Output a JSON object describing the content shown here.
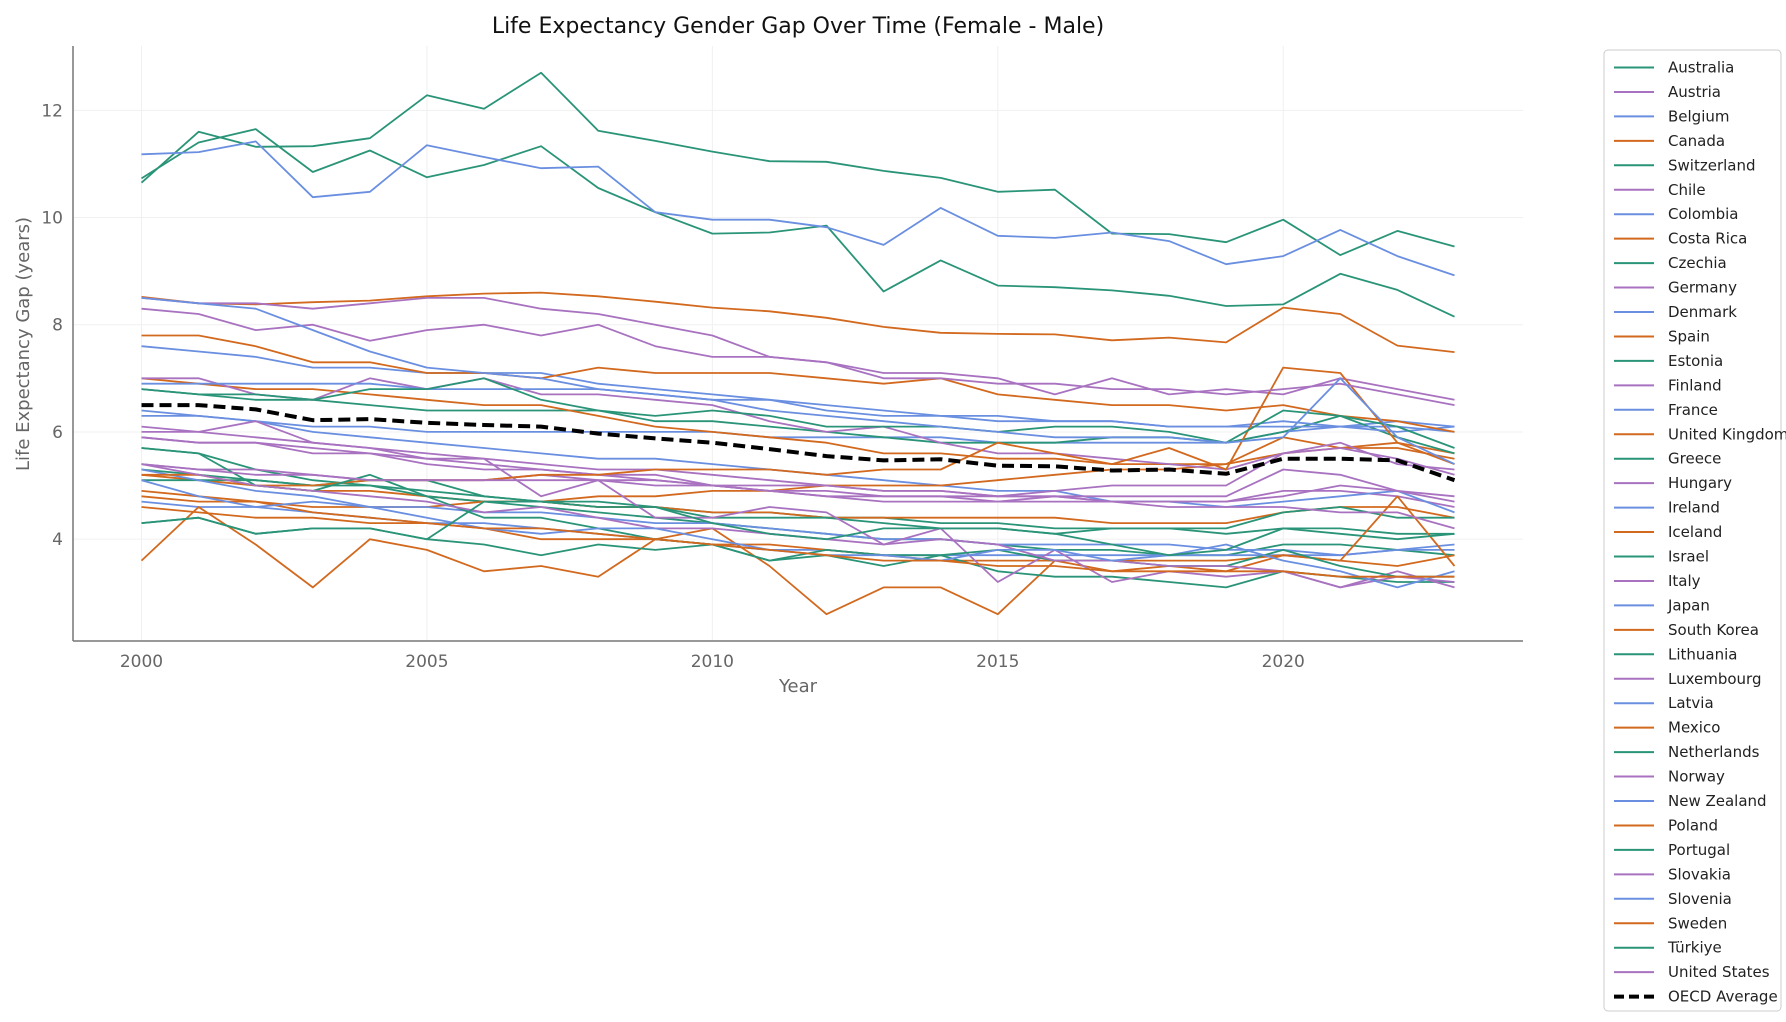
{
  "chart_data": {
    "type": "line",
    "title": "Life Expectancy Gender Gap Over Time (Female - Male)",
    "xlabel": "Year",
    "ylabel": "Life Expectancy Gap (years)",
    "xlim": [
      1998.8,
      2024.2
    ],
    "ylim": [
      2.1,
      13.2
    ],
    "x_ticks": [
      2000,
      2005,
      2010,
      2015,
      2020
    ],
    "y_ticks": [
      4,
      6,
      8,
      10,
      12
    ],
    "grid": true,
    "legend": "right, outside",
    "colors": {
      "teal": "#2a9478",
      "purple": "#a872c0",
      "blue": "#6a8fe0",
      "orange": "#d2691e",
      "average": "#000000"
    },
    "x": [
      2000,
      2001,
      2002,
      2003,
      2004,
      2005,
      2006,
      2007,
      2008,
      2009,
      2010,
      2011,
      2012,
      2013,
      2014,
      2015,
      2016,
      2017,
      2018,
      2019,
      2020,
      2021,
      2022,
      2023
    ],
    "series": [
      {
        "name": "Australia",
        "values": [
          5.3,
          5.2,
          5.1,
          5.0,
          5.0,
          4.9,
          4.8,
          4.7,
          4.6,
          4.6,
          4.5,
          4.5,
          4.4,
          4.4,
          4.3,
          4.3,
          4.2,
          4.2,
          4.2,
          4.1,
          4.2,
          4.2,
          4.1,
          4.1
        ]
      },
      {
        "name": "Austria",
        "values": [
          6.1,
          6.0,
          5.9,
          5.8,
          5.7,
          5.6,
          5.5,
          5.4,
          5.3,
          5.3,
          5.2,
          5.1,
          5.0,
          4.9,
          4.9,
          4.8,
          4.8,
          4.7,
          4.7,
          4.7,
          4.9,
          4.9,
          4.8,
          4.6
        ]
      },
      {
        "name": "Belgium",
        "values": [
          6.4,
          6.3,
          6.2,
          6.0,
          5.9,
          5.8,
          5.7,
          5.6,
          5.5,
          5.5,
          5.4,
          5.3,
          5.2,
          5.1,
          5.0,
          4.9,
          4.9,
          4.7,
          4.7,
          4.6,
          4.7,
          4.8,
          4.9,
          4.5
        ]
      },
      {
        "name": "Canada",
        "values": [
          5.2,
          5.1,
          5.0,
          4.9,
          4.9,
          4.8,
          4.7,
          4.7,
          4.6,
          4.6,
          4.5,
          4.5,
          4.4,
          4.4,
          4.4,
          4.4,
          4.4,
          4.3,
          4.3,
          4.3,
          4.5,
          4.6,
          4.6,
          4.4
        ]
      },
      {
        "name": "Switzerland",
        "values": [
          5.7,
          5.6,
          5.3,
          5.1,
          5.0,
          4.8,
          4.7,
          4.6,
          4.5,
          4.4,
          4.3,
          4.2,
          4.1,
          4.0,
          4.0,
          3.9,
          3.8,
          3.8,
          3.7,
          3.7,
          3.9,
          3.9,
          3.8,
          3.7
        ]
      },
      {
        "name": "Chile",
        "values": [
          5.4,
          5.3,
          5.3,
          5.2,
          5.1,
          5.1,
          5.1,
          5.2,
          5.1,
          5.0,
          5.0,
          4.9,
          4.8,
          4.7,
          4.7,
          4.7,
          4.8,
          4.8,
          4.8,
          4.8,
          5.3,
          5.2,
          4.9,
          4.8
        ]
      },
      {
        "name": "Colombia",
        "values": [
          6.3,
          6.3,
          6.2,
          6.1,
          6.1,
          6.0,
          6.0,
          6.0,
          6.0,
          6.0,
          6.0,
          5.9,
          5.9,
          5.9,
          5.9,
          5.8,
          5.8,
          5.8,
          5.8,
          5.8,
          6.0,
          6.1,
          6.2,
          6.1
        ]
      },
      {
        "name": "Costa Rica",
        "values": [
          4.8,
          4.7,
          4.7,
          4.6,
          4.6,
          4.6,
          4.7,
          4.7,
          4.8,
          4.8,
          4.9,
          4.9,
          5.0,
          5.0,
          5.0,
          5.1,
          5.2,
          5.3,
          5.3,
          5.4,
          5.6,
          5.7,
          5.8,
          5.6
        ]
      },
      {
        "name": "Czechia",
        "values": [
          6.8,
          6.7,
          6.6,
          6.6,
          6.5,
          6.4,
          6.4,
          6.4,
          6.4,
          6.2,
          6.2,
          6.1,
          6.0,
          5.9,
          5.8,
          5.8,
          5.8,
          5.9,
          5.9,
          5.8,
          6.0,
          6.3,
          5.9,
          5.6
        ]
      },
      {
        "name": "Germany",
        "values": [
          5.9,
          5.8,
          5.8,
          5.7,
          5.6,
          5.5,
          5.4,
          5.3,
          5.2,
          5.1,
          5.0,
          4.9,
          4.9,
          4.8,
          4.8,
          4.8,
          4.8,
          4.7,
          4.7,
          4.7,
          4.8,
          5.0,
          4.9,
          4.7
        ]
      },
      {
        "name": "Denmark",
        "values": [
          4.7,
          4.6,
          4.6,
          4.5,
          4.4,
          4.3,
          4.3,
          4.2,
          4.1,
          4.0,
          3.9,
          3.8,
          3.8,
          3.7,
          3.7,
          3.7,
          3.7,
          3.7,
          3.7,
          3.7,
          3.7,
          3.7,
          3.8,
          3.8
        ]
      },
      {
        "name": "Spain",
        "values": [
          7.0,
          6.9,
          6.8,
          6.8,
          6.7,
          6.6,
          6.5,
          6.5,
          6.3,
          6.1,
          6.0,
          5.9,
          5.8,
          5.6,
          5.6,
          5.5,
          5.5,
          5.4,
          5.4,
          5.4,
          5.9,
          5.7,
          5.7,
          5.5
        ]
      },
      {
        "name": "Estonia",
        "values": [
          10.73,
          11.4,
          11.65,
          10.85,
          11.25,
          10.75,
          10.98,
          11.33,
          10.55,
          10.1,
          9.7,
          9.72,
          9.85,
          8.62,
          9.2,
          8.73,
          8.7,
          8.64,
          8.54,
          8.35,
          8.38,
          8.95,
          8.65,
          8.15
        ]
      },
      {
        "name": "Finland",
        "values": [
          7.0,
          7.0,
          6.7,
          6.6,
          7.0,
          6.8,
          7.0,
          6.7,
          6.7,
          6.6,
          6.5,
          6.2,
          6.0,
          6.1,
          5.8,
          5.6,
          5.6,
          5.5,
          5.4,
          5.3,
          5.6,
          5.7,
          5.5,
          5.2
        ]
      },
      {
        "name": "France",
        "values": [
          7.6,
          7.5,
          7.4,
          7.2,
          7.2,
          7.1,
          7.1,
          7.1,
          6.9,
          6.8,
          6.7,
          6.6,
          6.4,
          6.3,
          6.3,
          6.2,
          6.2,
          6.2,
          6.1,
          6.1,
          6.2,
          6.1,
          6.0,
          6.1
        ]
      },
      {
        "name": "United Kingdom",
        "values": [
          4.9,
          4.8,
          4.7,
          4.5,
          4.4,
          4.3,
          4.2,
          4.0,
          4.0,
          4.0,
          3.9,
          3.9,
          3.8,
          3.7,
          3.6,
          3.6,
          3.6,
          3.6,
          3.6,
          3.6,
          3.7,
          3.6,
          3.5,
          3.7
        ]
      },
      {
        "name": "Greece",
        "values": [
          5.1,
          5.1,
          5.1,
          5.0,
          5.1,
          5.1,
          4.8,
          4.7,
          4.7,
          4.6,
          4.4,
          4.4,
          4.4,
          4.3,
          4.2,
          4.2,
          4.1,
          4.2,
          4.2,
          4.2,
          4.5,
          4.6,
          4.4,
          4.4
        ]
      },
      {
        "name": "Hungary",
        "values": [
          8.3,
          8.2,
          7.9,
          8.0,
          7.7,
          7.9,
          8.0,
          7.8,
          8.0,
          7.6,
          7.4,
          7.4,
          7.3,
          7.1,
          7.1,
          7.0,
          6.7,
          7.0,
          6.7,
          6.8,
          6.7,
          7.0,
          6.8,
          6.6
        ]
      },
      {
        "name": "Ireland",
        "values": [
          5.3,
          5.1,
          4.9,
          4.8,
          4.6,
          4.6,
          4.5,
          4.5,
          4.4,
          4.3,
          4.3,
          4.2,
          4.1,
          4.0,
          4.0,
          3.9,
          3.9,
          3.9,
          3.9,
          3.8,
          3.8,
          3.7,
          3.8,
          3.9
        ]
      },
      {
        "name": "Iceland",
        "values": [
          3.6,
          4.6,
          3.9,
          3.1,
          4.0,
          3.8,
          3.4,
          3.5,
          3.3,
          4.0,
          4.2,
          3.5,
          2.6,
          3.1,
          3.1,
          2.6,
          3.6,
          3.4,
          3.5,
          3.4,
          3.7,
          3.6,
          4.8,
          3.5
        ]
      },
      {
        "name": "Israel",
        "values": [
          4.3,
          4.4,
          4.1,
          4.2,
          4.2,
          4.0,
          3.9,
          3.7,
          3.9,
          3.8,
          3.9,
          3.6,
          3.7,
          3.5,
          3.7,
          3.4,
          3.3,
          3.3,
          3.2,
          3.1,
          3.4,
          3.3,
          3.2,
          3.2
        ]
      },
      {
        "name": "Italy",
        "values": [
          5.9,
          5.8,
          5.8,
          5.6,
          5.6,
          5.4,
          5.3,
          5.3,
          5.2,
          5.2,
          5.0,
          4.9,
          4.8,
          4.8,
          4.8,
          4.7,
          4.7,
          4.7,
          4.6,
          4.6,
          4.6,
          4.5,
          4.5,
          4.2
        ]
      },
      {
        "name": "Japan",
        "values": [
          6.9,
          6.9,
          6.9,
          6.9,
          6.9,
          6.8,
          6.8,
          6.8,
          6.8,
          6.7,
          6.6,
          6.6,
          6.5,
          6.4,
          6.3,
          6.3,
          6.2,
          6.2,
          6.1,
          6.1,
          6.1,
          6.1,
          6.1,
          6.0
        ]
      },
      {
        "name": "South Korea",
        "values": [
          7.8,
          7.8,
          7.6,
          7.3,
          7.3,
          7.1,
          7.1,
          7.0,
          7.2,
          7.1,
          7.1,
          7.1,
          7.0,
          6.9,
          7.0,
          6.7,
          6.6,
          6.5,
          6.5,
          6.4,
          6.5,
          6.3,
          6.2,
          6.0
        ]
      },
      {
        "name": "Lithuania",
        "values": [
          10.65,
          11.6,
          11.32,
          11.33,
          11.48,
          12.28,
          12.03,
          12.7,
          11.62,
          11.43,
          11.23,
          11.05,
          11.04,
          10.87,
          10.74,
          10.48,
          10.52,
          9.7,
          9.69,
          9.54,
          9.96,
          9.3,
          9.75,
          9.46
        ]
      },
      {
        "name": "Luxembourg",
        "values": [
          6.0,
          6.0,
          6.2,
          5.8,
          5.7,
          5.5,
          5.5,
          4.8,
          5.1,
          4.4,
          4.4,
          4.6,
          4.5,
          3.9,
          4.2,
          3.2,
          3.8,
          3.2,
          3.4,
          3.3,
          3.4,
          3.1,
          3.4,
          3.1
        ]
      },
      {
        "name": "Latvia",
        "values": [
          11.18,
          11.22,
          11.42,
          10.38,
          10.48,
          11.35,
          11.13,
          10.92,
          10.95,
          10.1,
          9.96,
          9.96,
          9.82,
          9.49,
          10.18,
          9.66,
          9.62,
          9.72,
          9.56,
          9.13,
          9.28,
          9.77,
          9.28,
          8.92
        ]
      },
      {
        "name": "Mexico",
        "values": [
          5.2,
          5.2,
          5.0,
          5.0,
          5.1,
          5.1,
          5.1,
          5.2,
          5.2,
          5.3,
          5.3,
          5.3,
          5.2,
          5.3,
          5.3,
          5.8,
          5.6,
          5.4,
          5.7,
          5.3,
          7.2,
          7.1,
          5.8,
          5.4
        ]
      },
      {
        "name": "Netherlands",
        "values": [
          5.7,
          5.6,
          5.0,
          4.9,
          5.2,
          4.8,
          4.4,
          4.4,
          4.2,
          4.0,
          3.9,
          3.6,
          3.8,
          3.7,
          3.7,
          3.8,
          3.6,
          3.6,
          3.5,
          3.5,
          3.8,
          3.5,
          3.3,
          3.3
        ]
      },
      {
        "name": "Norway",
        "values": [
          5.4,
          5.2,
          5.0,
          4.9,
          4.8,
          4.7,
          4.5,
          4.6,
          4.4,
          4.2,
          4.2,
          4.1,
          4.0,
          3.9,
          4.0,
          3.9,
          3.6,
          3.6,
          3.5,
          3.5,
          3.4,
          3.1,
          3.3,
          3.2
        ]
      },
      {
        "name": "New Zealand",
        "values": [
          5.1,
          4.8,
          4.6,
          4.7,
          4.6,
          4.4,
          4.2,
          4.1,
          4.2,
          4.2,
          4.0,
          3.8,
          3.7,
          3.7,
          3.6,
          3.8,
          3.8,
          3.6,
          3.7,
          3.9,
          3.6,
          3.4,
          3.1,
          3.4
        ]
      },
      {
        "name": "Poland",
        "values": [
          8.52,
          8.4,
          8.38,
          8.42,
          8.45,
          8.53,
          8.58,
          8.6,
          8.53,
          8.43,
          8.32,
          8.25,
          8.13,
          7.96,
          7.85,
          7.83,
          7.82,
          7.71,
          7.76,
          7.67,
          8.32,
          8.2,
          7.61,
          7.49
        ]
      },
      {
        "name": "Portugal",
        "values": [
          6.8,
          6.7,
          6.7,
          6.6,
          6.8,
          6.8,
          7.0,
          6.6,
          6.4,
          6.3,
          6.4,
          6.3,
          6.1,
          6.1,
          6.1,
          6.0,
          6.1,
          6.1,
          6.0,
          5.8,
          6.4,
          6.3,
          6.1,
          5.7
        ]
      },
      {
        "name": "Slovakia",
        "values": [
          8.5,
          8.4,
          8.4,
          8.3,
          8.4,
          8.5,
          8.5,
          8.3,
          8.2,
          8.0,
          7.8,
          7.4,
          7.3,
          7.0,
          7.0,
          6.9,
          6.9,
          6.8,
          6.8,
          6.7,
          6.8,
          6.9,
          6.7,
          6.5
        ]
      },
      {
        "name": "Slovenia",
        "values": [
          8.5,
          8.4,
          8.3,
          7.9,
          7.5,
          7.2,
          7.1,
          7.0,
          6.8,
          6.7,
          6.6,
          6.4,
          6.3,
          6.2,
          6.1,
          6.0,
          5.9,
          5.9,
          5.9,
          5.8,
          5.9,
          7.0,
          5.9,
          5.4
        ]
      },
      {
        "name": "Sweden",
        "values": [
          4.6,
          4.5,
          4.4,
          4.4,
          4.3,
          4.3,
          4.2,
          4.2,
          4.1,
          4.0,
          3.9,
          3.8,
          3.7,
          3.6,
          3.6,
          3.5,
          3.5,
          3.4,
          3.4,
          3.4,
          3.4,
          3.3,
          3.3,
          3.3
        ]
      },
      {
        "name": "Türkiye",
        "values": [
          4.3,
          4.4,
          4.1,
          4.2,
          4.2,
          4.0,
          4.7,
          4.7,
          4.6,
          4.6,
          4.3,
          4.1,
          4.0,
          4.2,
          4.2,
          4.2,
          4.1,
          3.9,
          3.7,
          3.8,
          4.2,
          4.1,
          4.0,
          4.1
        ]
      },
      {
        "name": "United States",
        "values": [
          5.4,
          5.3,
          5.2,
          5.2,
          5.1,
          5.1,
          5.1,
          5.1,
          5.1,
          5.1,
          5.0,
          5.0,
          5.0,
          4.9,
          4.9,
          4.8,
          4.9,
          5.0,
          5.0,
          5.0,
          5.6,
          5.8,
          5.4,
          5.3
        ]
      },
      {
        "name": "OECD Average",
        "style": "dashed",
        "values": [
          6.5,
          6.5,
          6.42,
          6.22,
          6.24,
          6.17,
          6.13,
          6.1,
          5.97,
          5.88,
          5.8,
          5.68,
          5.55,
          5.47,
          5.49,
          5.37,
          5.36,
          5.28,
          5.3,
          5.22,
          5.5,
          5.5,
          5.47,
          5.1
        ]
      }
    ]
  }
}
